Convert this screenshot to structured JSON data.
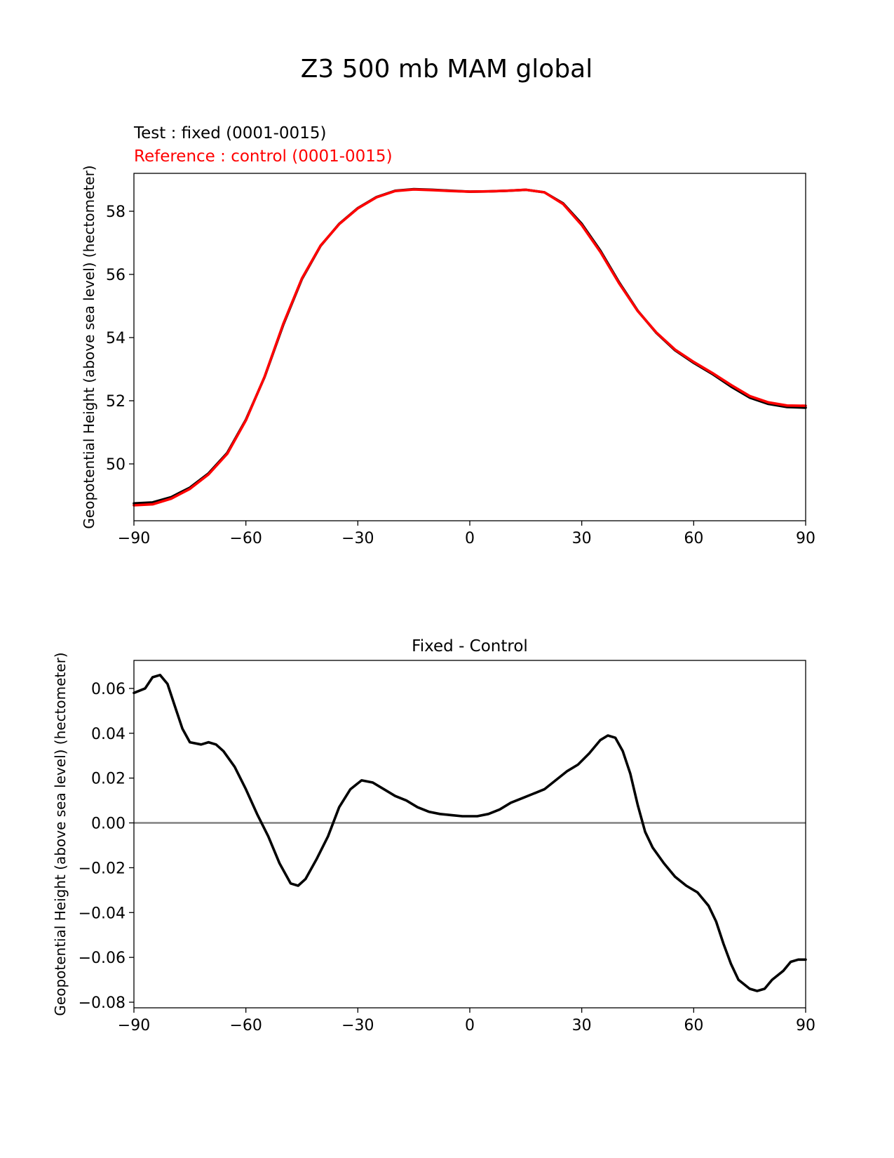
{
  "figure": {
    "suptitle": "Z3 500 mb MAM global"
  },
  "colors": {
    "test": "#000000",
    "reference": "#ff0000",
    "zero_line": "#808080"
  },
  "chart_data": [
    {
      "type": "line",
      "test_label": "Test : fixed (0001-0015)",
      "reference_label": "Reference : control (0001-0015)",
      "xlabel": "",
      "ylabel": "Geopotential Height (above sea level) (hectometer)",
      "xlim": [
        -90,
        90
      ],
      "ylim": [
        48.2,
        59.2
      ],
      "xticks": [
        -90,
        -60,
        -30,
        0,
        30,
        60,
        90
      ],
      "xtick_labels": [
        "−90",
        "−60",
        "−30",
        "0",
        "30",
        "60",
        "90"
      ],
      "yticks": [
        50,
        52,
        54,
        56,
        58
      ],
      "ytick_labels": [
        "50",
        "52",
        "54",
        "56",
        "58"
      ],
      "grid": false,
      "series": [
        {
          "name": "Test : fixed (0001-0015)",
          "color": "#000000",
          "x": [
            -90,
            -85,
            -80,
            -75,
            -70,
            -65,
            -60,
            -55,
            -50,
            -45,
            -40,
            -35,
            -30,
            -25,
            -20,
            -15,
            -10,
            -5,
            0,
            5,
            10,
            15,
            20,
            25,
            30,
            35,
            40,
            45,
            50,
            55,
            60,
            65,
            70,
            75,
            80,
            85,
            90
          ],
          "y": [
            48.75,
            48.78,
            48.95,
            49.25,
            49.7,
            50.35,
            51.4,
            52.75,
            54.4,
            55.85,
            56.9,
            57.6,
            58.1,
            58.45,
            58.65,
            58.7,
            58.68,
            58.65,
            58.62,
            58.63,
            58.65,
            58.68,
            58.6,
            58.25,
            57.6,
            56.75,
            55.75,
            54.85,
            54.15,
            53.6,
            53.2,
            52.85,
            52.45,
            52.1,
            51.9,
            51.8,
            51.78
          ]
        },
        {
          "name": "Reference : control (0001-0015)",
          "color": "#ff0000",
          "x": [
            -90,
            -85,
            -80,
            -75,
            -70,
            -65,
            -60,
            -55,
            -50,
            -45,
            -40,
            -35,
            -30,
            -25,
            -20,
            -15,
            -10,
            -5,
            0,
            5,
            10,
            15,
            20,
            25,
            30,
            35,
            40,
            45,
            50,
            55,
            60,
            65,
            70,
            75,
            80,
            85,
            90
          ],
          "y": [
            48.69,
            48.72,
            48.9,
            49.21,
            49.67,
            50.32,
            51.38,
            52.76,
            54.43,
            55.87,
            56.91,
            57.59,
            58.09,
            58.44,
            58.64,
            58.69,
            58.67,
            58.64,
            58.62,
            58.63,
            58.65,
            58.68,
            58.6,
            58.23,
            57.56,
            56.71,
            55.72,
            54.84,
            54.16,
            53.62,
            53.23,
            52.88,
            52.5,
            52.15,
            51.95,
            51.85,
            51.84
          ]
        }
      ]
    },
    {
      "type": "line",
      "title": "Fixed - Control",
      "xlabel": "",
      "ylabel": "Geopotential Height (above sea level) (hectometer)",
      "xlim": [
        -90,
        90
      ],
      "ylim": [
        -0.0825,
        0.0725
      ],
      "xticks": [
        -90,
        -60,
        -30,
        0,
        30,
        60,
        90
      ],
      "xtick_labels": [
        "−90",
        "−60",
        "−30",
        "0",
        "30",
        "60",
        "90"
      ],
      "yticks": [
        0.06,
        0.04,
        0.02,
        0.0,
        -0.02,
        -0.04,
        -0.06,
        -0.08
      ],
      "ytick_labels": [
        "0.06",
        "0.04",
        "0.02",
        "0.00",
        "−0.02",
        "−0.04",
        "−0.06",
        "−0.08"
      ],
      "grid": false,
      "zero_line": true,
      "series": [
        {
          "name": "",
          "color": "#000000",
          "x": [
            -90,
            -87,
            -85,
            -83,
            -81,
            -79,
            -77,
            -75,
            -72,
            -70,
            -68,
            -66,
            -63,
            -60,
            -57,
            -54,
            -51,
            -48,
            -46,
            -44,
            -41,
            -38,
            -35,
            -32,
            -29,
            -26,
            -23,
            -20,
            -17,
            -14,
            -11,
            -8,
            -5,
            -2,
            0,
            2,
            5,
            8,
            11,
            14,
            17,
            20,
            23,
            26,
            29,
            32,
            35,
            37,
            39,
            41,
            43,
            45,
            47,
            49,
            52,
            55,
            58,
            61,
            64,
            66,
            68,
            70,
            72,
            75,
            77,
            79,
            81,
            84,
            86,
            88,
            90
          ],
          "y": [
            0.058,
            0.06,
            0.065,
            0.066,
            0.062,
            0.052,
            0.042,
            0.036,
            0.035,
            0.036,
            0.035,
            0.032,
            0.025,
            0.015,
            0.004,
            -0.006,
            -0.018,
            -0.027,
            -0.028,
            -0.025,
            -0.016,
            -0.006,
            0.007,
            0.015,
            0.019,
            0.018,
            0.015,
            0.012,
            0.01,
            0.007,
            0.005,
            0.004,
            0.0035,
            0.003,
            0.003,
            0.003,
            0.004,
            0.006,
            0.009,
            0.011,
            0.013,
            0.015,
            0.019,
            0.023,
            0.026,
            0.031,
            0.037,
            0.039,
            0.038,
            0.032,
            0.022,
            0.008,
            -0.004,
            -0.011,
            -0.018,
            -0.024,
            -0.028,
            -0.031,
            -0.037,
            -0.044,
            -0.054,
            -0.063,
            -0.07,
            -0.074,
            -0.075,
            -0.074,
            -0.07,
            -0.066,
            -0.062,
            -0.061,
            -0.061
          ]
        }
      ]
    }
  ]
}
